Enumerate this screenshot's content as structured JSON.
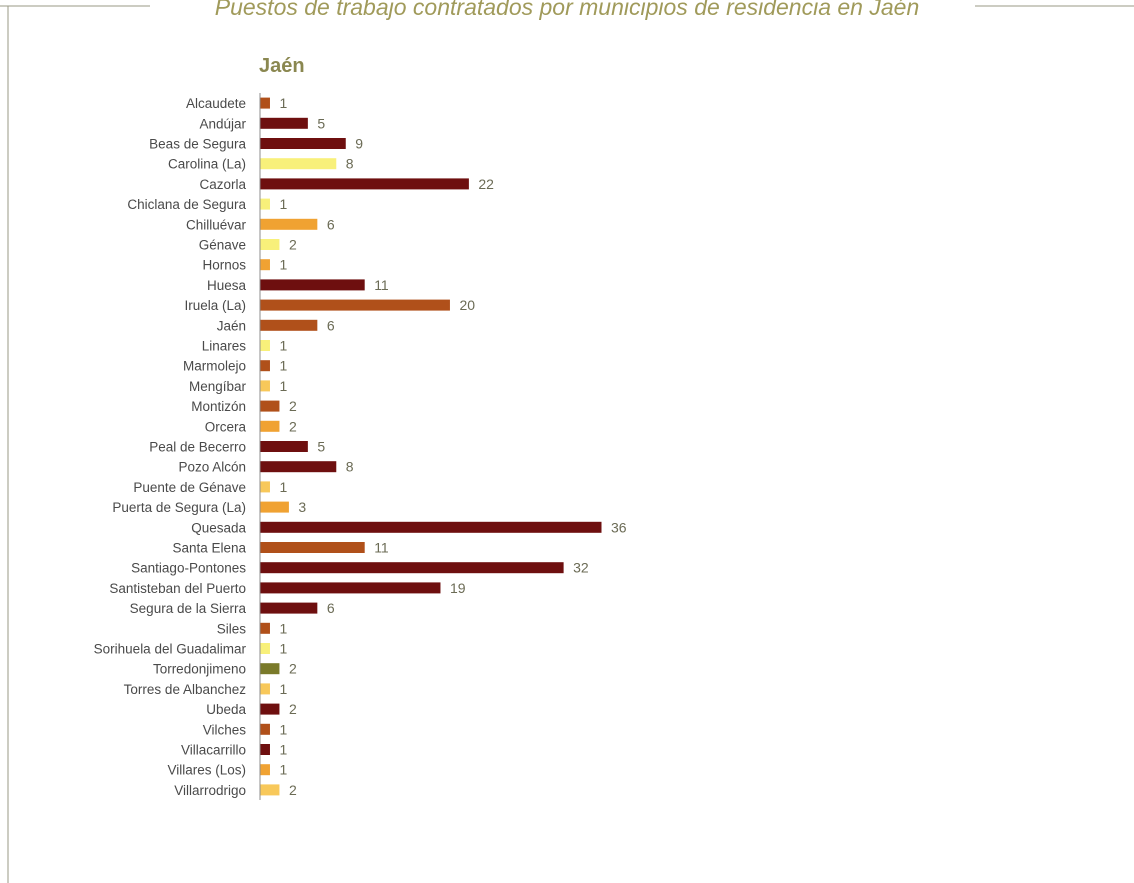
{
  "page": {
    "title": "Puestos de trabajo contratados por municipios de residencia en Jaén"
  },
  "colors": {
    "frame_line": "#9a9a86",
    "title_text": "#a09a5a",
    "axis_line": "#8c8c8c"
  },
  "chart_data": {
    "type": "bar",
    "orientation": "horizontal",
    "title": "Jaén",
    "xlabel": "",
    "ylabel": "",
    "xlim": [
      0,
      36
    ],
    "grid": false,
    "legend": "none",
    "categories": [
      "Alcaudete",
      "Andújar",
      "Beas de Segura",
      "Carolina (La)",
      "Cazorla",
      "Chiclana de Segura",
      "Chilluévar",
      "Génave",
      "Hornos",
      "Huesa",
      "Iruela (La)",
      "Jaén",
      "Linares",
      "Marmolejo",
      "Mengíbar",
      "Montizón",
      "Orcera",
      "Peal de Becerro",
      "Pozo Alcón",
      "Puente de Génave",
      "Puerta de Segura (La)",
      "Quesada",
      "Santa Elena",
      "Santiago-Pontones",
      "Santisteban del Puerto",
      "Segura de la Sierra",
      "Siles",
      "Sorihuela del Guadalimar",
      "Torredonjimeno",
      "Torres de Albanchez",
      "Ubeda",
      "Vilches",
      "Villacarrillo",
      "Villares (Los)",
      "Villarrodrigo"
    ],
    "values": [
      1,
      5,
      9,
      8,
      22,
      1,
      6,
      2,
      1,
      11,
      20,
      6,
      1,
      1,
      1,
      2,
      2,
      5,
      8,
      1,
      3,
      36,
      11,
      32,
      19,
      6,
      1,
      1,
      2,
      1,
      2,
      1,
      1,
      1,
      2
    ],
    "bar_colors": [
      "#b0501a",
      "#6e0f0f",
      "#6e0f0f",
      "#f8f07a",
      "#6e0f0f",
      "#f8f07a",
      "#f0a232",
      "#f8f07a",
      "#f0a232",
      "#6e0f0f",
      "#b0501a",
      "#b0501a",
      "#f8f07a",
      "#b0501a",
      "#f8c85a",
      "#b0501a",
      "#f0a232",
      "#6e0f0f",
      "#6e0f0f",
      "#f8c85a",
      "#f0a232",
      "#6e0f0f",
      "#b0501a",
      "#6e0f0f",
      "#6e0f0f",
      "#6e0f0f",
      "#b0501a",
      "#f8f07a",
      "#7a7a2a",
      "#f8c85a",
      "#6e0f0f",
      "#b0501a",
      "#6e0f0f",
      "#f0a232",
      "#f8c85a"
    ]
  }
}
